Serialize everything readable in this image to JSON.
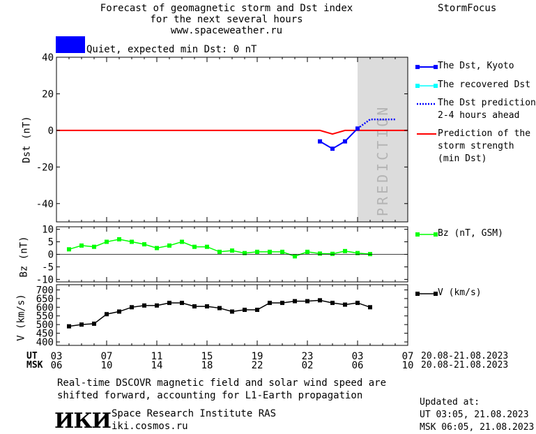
{
  "header": {
    "title_lines": [
      "Forecast of geomagnetic storm and Dst index",
      "for the next several hours",
      "www.spaceweather.ru"
    ],
    "brand": "StormFocus"
  },
  "status": {
    "text": "Quiet, expected min Dst: 0 nT",
    "color": "#0000ff"
  },
  "legend": {
    "dst_kyoto": "The Dst, Kyoto",
    "dst_recovered": "The recovered Dst",
    "dst_prediction": [
      "The Dst prediction",
      "2-4 hours ahead"
    ],
    "storm_strength": [
      "Prediction of the",
      "storm strength",
      "(min Dst)"
    ],
    "bz": "Bz (nT, GSM)",
    "v": "V (km/s)"
  },
  "time_axis": {
    "ut_label": "UT",
    "msk_label": "MSK",
    "ut_ticks": [
      "03",
      "07",
      "11",
      "15",
      "19",
      "23",
      "03",
      "07"
    ],
    "msk_ticks": [
      "06",
      "10",
      "14",
      "18",
      "22",
      "02",
      "06",
      "10"
    ],
    "ut_range": "20.08-21.08.2023",
    "msk_range": "20.08-21.08.2023",
    "prediction_label": "PREDICTION"
  },
  "footer": {
    "note": "Real-time DSCOVR magnetic field and solar wind speed are shifted forward, accounting for L1-Earth propagation",
    "logo": "ИКИ",
    "institute": "Space Research Institute RAS",
    "site": "iki.cosmos.ru",
    "updated_label": "Updated at:",
    "updated_ut": "UT   03:05, 21.08.2023",
    "updated_msk": "MSK 06:05, 21.08.2023"
  },
  "chart_data": [
    {
      "type": "line",
      "ylabel": "Dst (nT)",
      "ylim": [
        -50,
        40
      ],
      "yticks": [
        40,
        20,
        0,
        -20,
        -40
      ],
      "xlim_hours": [
        0,
        28
      ],
      "prediction_start_hour": 24,
      "series": [
        {
          "name": "The Dst, Kyoto",
          "color": "#0000ff",
          "x": [
            21,
            22,
            23,
            24
          ],
          "y": [
            -6,
            -10,
            -6,
            1
          ]
        },
        {
          "name": "The recovered Dst",
          "color": "#00ffff",
          "x": [],
          "y": []
        },
        {
          "name": "The Dst prediction 2-4 hours ahead",
          "color": "#0000ff",
          "x": [
            24,
            25,
            27
          ],
          "y": [
            1,
            6,
            6
          ]
        },
        {
          "name": "Prediction of the storm strength (min Dst)",
          "color": "#ff0000",
          "x": [
            0,
            21,
            22,
            23,
            28
          ],
          "y": [
            0,
            0,
            -2,
            0,
            0
          ]
        }
      ]
    },
    {
      "type": "line",
      "ylabel": "Bz (nT)",
      "ylim": [
        -11,
        11
      ],
      "yticks": [
        10,
        5,
        0,
        -5,
        -10
      ],
      "series": [
        {
          "name": "Bz (nT, GSM)",
          "color": "#00ff00",
          "x": [
            1,
            2,
            3,
            4,
            5,
            6,
            7,
            8,
            9,
            10,
            11,
            12,
            13,
            14,
            15,
            16,
            17,
            18,
            19,
            20,
            21,
            22,
            23,
            24,
            25
          ],
          "y": [
            2,
            3.5,
            3,
            5,
            6,
            5,
            4,
            2.5,
            3.5,
            5,
            3,
            3,
            1,
            1.5,
            0.5,
            1,
            1,
            1,
            -0.8,
            1,
            0.3,
            0.2,
            1.3,
            0.5,
            0.1
          ]
        }
      ]
    },
    {
      "type": "line",
      "ylabel": "V (km/s)",
      "ylim": [
        380,
        730
      ],
      "yticks": [
        700,
        650,
        600,
        550,
        500,
        450,
        400
      ],
      "series": [
        {
          "name": "V (km/s)",
          "color": "#000000",
          "x": [
            1,
            2,
            3,
            4,
            5,
            6,
            7,
            8,
            9,
            10,
            11,
            12,
            13,
            14,
            15,
            16,
            17,
            18,
            19,
            20,
            21,
            22,
            23,
            24,
            25
          ],
          "y": [
            490,
            500,
            505,
            560,
            575,
            600,
            610,
            610,
            625,
            625,
            605,
            605,
            595,
            575,
            585,
            585,
            625,
            625,
            635,
            635,
            640,
            625,
            615,
            625,
            600
          ]
        }
      ]
    }
  ]
}
